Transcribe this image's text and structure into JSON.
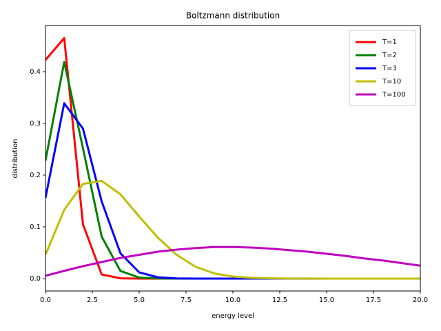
{
  "chart_data": {
    "type": "line",
    "title": "Boltzmann distribution",
    "x_label": "energy level",
    "y_label": "distribution",
    "x": [
      0,
      1,
      2,
      3,
      4,
      5,
      6,
      7,
      8,
      9,
      10,
      11,
      12,
      13,
      14,
      15,
      16,
      17,
      18,
      19,
      20
    ],
    "series": [
      {
        "name": "T=1",
        "color": "#ff0000",
        "values": [
          0.4227,
          0.465,
          0.105,
          0.008,
          0.0005,
          0,
          0,
          0,
          0,
          0,
          0,
          0,
          0,
          0,
          0,
          0,
          0,
          0,
          0,
          0,
          0
        ]
      },
      {
        "name": "T=2",
        "color": "#008000",
        "values": [
          0.228,
          0.419,
          0.252,
          0.081,
          0.0147,
          0.002,
          0.0003,
          0,
          0,
          0,
          0,
          0,
          0,
          0,
          0,
          0,
          0,
          0,
          0,
          0,
          0
        ]
      },
      {
        "name": "T=3",
        "color": "#0000ff",
        "values": [
          0.156,
          0.339,
          0.29,
          0.149,
          0.049,
          0.012,
          0.0025,
          0.0004,
          0,
          0,
          0,
          0,
          0,
          0,
          0,
          0,
          0,
          0,
          0,
          0,
          0
        ]
      },
      {
        "name": "T=10",
        "color": "#bfbf00",
        "values": [
          0.046,
          0.133,
          0.183,
          0.189,
          0.163,
          0.12,
          0.079,
          0.046,
          0.023,
          0.01,
          0.004,
          0.0015,
          0.0005,
          0.0002,
          0.0001,
          0,
          0,
          0,
          0,
          0,
          0
        ]
      },
      {
        "name": "T=100",
        "color": "#bf00bf",
        "values": [
          0.0055,
          0.015,
          0.024,
          0.032,
          0.04,
          0.046,
          0.052,
          0.056,
          0.059,
          0.061,
          0.061,
          0.06,
          0.058,
          0.055,
          0.052,
          0.048,
          0.044,
          0.039,
          0.035,
          0.03,
          0.025
        ]
      }
    ],
    "xlim": [
      0,
      20
    ],
    "ylim": [
      -0.024,
      0.4893
    ],
    "xticks": [
      {
        "value": 0,
        "label": "0.0"
      },
      2.5,
      {
        "value": 5,
        "label": "5.0"
      },
      7.5,
      {
        "value": 10,
        "label": "10.0"
      },
      12.5,
      {
        "value": 15,
        "label": "15.0"
      },
      17.5,
      {
        "value": 20,
        "label": "20.0"
      }
    ],
    "yticks": [
      {
        "value": 0,
        "label": "0.0"
      },
      0.1,
      0.2,
      0.3,
      0.4
    ],
    "legend": "upper right"
  }
}
